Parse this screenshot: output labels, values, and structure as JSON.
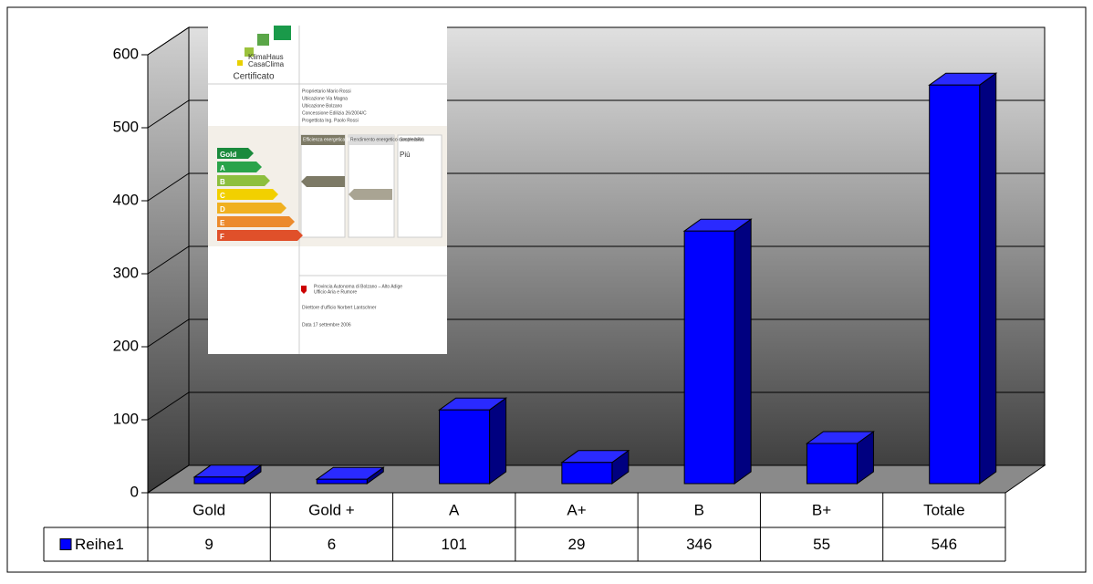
{
  "chart_data": {
    "type": "bar3d",
    "categories": [
      "Gold",
      "Gold +",
      "A",
      "A+",
      "B",
      "B+",
      "Totale"
    ],
    "series": [
      {
        "name": "Reihe1",
        "color": "#0000ff",
        "values": [
          9,
          6,
          101,
          29,
          346,
          55,
          546
        ]
      }
    ],
    "ylim": [
      0,
      600
    ],
    "yticks": [
      0,
      100,
      200,
      300,
      400,
      500,
      600
    ],
    "grid": true,
    "data_table": true
  },
  "inset_image": {
    "logo_top": "KlimaHaus",
    "logo_bottom": "CasaClima",
    "heading": "Certificato",
    "owner": "Proprietario Mario Rossi",
    "street": "Ubicazione Via Magna",
    "city": "Ubicazione Bolzano",
    "permit": "Concessione Edilizia 26/2004/C",
    "designer": "Progettista Ing. Paolo Rossi",
    "classes": [
      "Gold",
      "A",
      "B",
      "C",
      "D",
      "E",
      "F"
    ],
    "column_1": "Efficienza energetica dell'involucro",
    "column_2": "Rendimento energetico complessivo",
    "column_3": "Sostenibilità",
    "plus": "Più",
    "authority": "Provincia Autonoma di Bolzano – Alto Adige",
    "office": "Ufficio Aria e Rumore",
    "director": "Direttore d'ufficio Norbert Lantschner",
    "date": "Data 17 settembre 2006"
  }
}
